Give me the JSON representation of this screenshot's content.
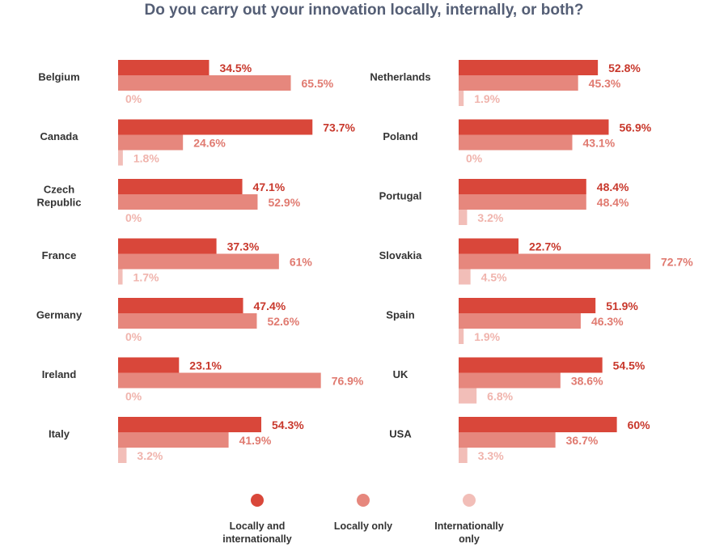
{
  "chart_data": {
    "type": "bar",
    "orientation": "horizontal",
    "title": "Do you carry out your innovation locally, internally, or both?",
    "unit_suffix": "%",
    "xlim": [
      0,
      100
    ],
    "grid": false,
    "legend_position": "bottom",
    "series": [
      {
        "name": "Locally and internationally",
        "color": "#d9473a"
      },
      {
        "name": "Locally only",
        "color": "#e6877d"
      },
      {
        "name": "Internationally only",
        "color": "#f2beb8"
      }
    ],
    "label_colors": [
      "#c8382c",
      "#e07a70",
      "#f0b4ad"
    ],
    "panels": [
      {
        "categories": [
          {
            "label": [
              "Belgium"
            ],
            "values": [
              34.5,
              65.5,
              0
            ]
          },
          {
            "label": [
              "Canada"
            ],
            "values": [
              73.7,
              24.6,
              1.8
            ]
          },
          {
            "label": [
              "Czech",
              "Republic"
            ],
            "values": [
              47.1,
              52.9,
              0
            ]
          },
          {
            "label": [
              "France"
            ],
            "values": [
              37.3,
              61,
              1.7
            ]
          },
          {
            "label": [
              "Germany"
            ],
            "values": [
              47.4,
              52.6,
              0
            ]
          },
          {
            "label": [
              "Ireland"
            ],
            "values": [
              23.1,
              76.9,
              0
            ]
          },
          {
            "label": [
              "Italy"
            ],
            "values": [
              54.3,
              41.9,
              3.2
            ]
          }
        ]
      },
      {
        "categories": [
          {
            "label": [
              "Netherlands"
            ],
            "values": [
              52.8,
              45.3,
              1.9
            ]
          },
          {
            "label": [
              "Poland"
            ],
            "values": [
              56.9,
              43.1,
              0
            ]
          },
          {
            "label": [
              "Portugal"
            ],
            "values": [
              48.4,
              48.4,
              3.2
            ]
          },
          {
            "label": [
              "Slovakia"
            ],
            "values": [
              22.7,
              72.7,
              4.5
            ]
          },
          {
            "label": [
              "Spain"
            ],
            "values": [
              51.9,
              46.3,
              1.9
            ]
          },
          {
            "label": [
              "UK"
            ],
            "values": [
              54.5,
              38.6,
              6.8
            ]
          },
          {
            "label": [
              "USA"
            ],
            "values": [
              60,
              36.7,
              3.3
            ]
          }
        ]
      }
    ],
    "legend": [
      {
        "label": [
          "Locally and",
          "internationally"
        ]
      },
      {
        "label": [
          "Locally only"
        ]
      },
      {
        "label": [
          "Internationally",
          "only"
        ]
      }
    ]
  }
}
